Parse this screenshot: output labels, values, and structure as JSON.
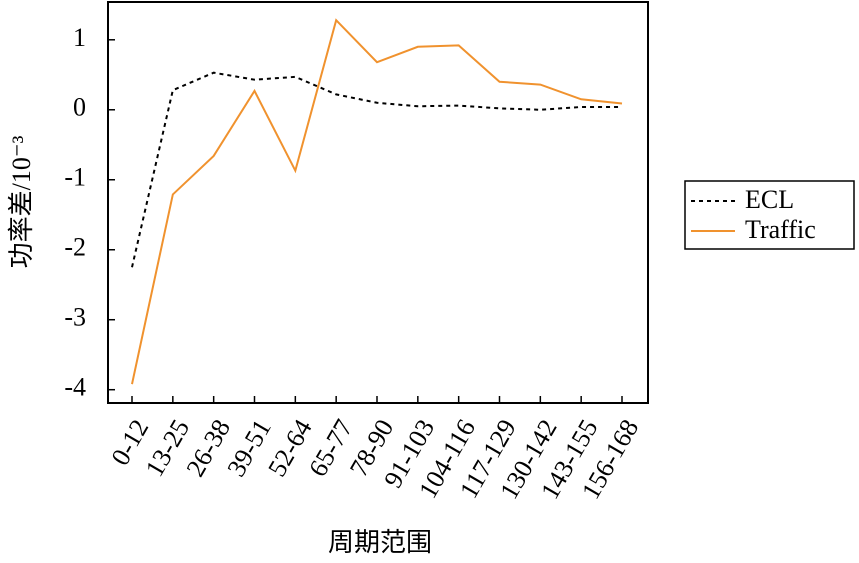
{
  "chart_data": {
    "type": "line",
    "x_label": "周期范围",
    "y_label": "功率差/10⁻³",
    "categories": [
      "0-12",
      "13-25",
      "26-38",
      "39-51",
      "52-64",
      "65-77",
      "78-90",
      "91-103",
      "104-116",
      "117-129",
      "130-142",
      "143-155",
      "156-168"
    ],
    "series": [
      {
        "name": "ECL",
        "color": "#000000",
        "dash": "dotted",
        "values": [
          -2.25,
          0.28,
          0.53,
          0.43,
          0.47,
          0.22,
          0.1,
          0.05,
          0.06,
          0.02,
          0.0,
          0.04,
          0.04
        ]
      },
      {
        "name": "Traffic",
        "color": "#f0922e",
        "dash": "solid",
        "values": [
          -3.92,
          -1.21,
          -0.66,
          0.27,
          -0.87,
          1.28,
          0.68,
          0.9,
          0.92,
          0.4,
          0.36,
          0.15,
          0.09
        ]
      }
    ],
    "ylim": [
      -4.19,
      1.54
    ],
    "yticks": [
      -4,
      -3,
      -2,
      -1,
      0,
      1
    ],
    "legend": "right"
  }
}
